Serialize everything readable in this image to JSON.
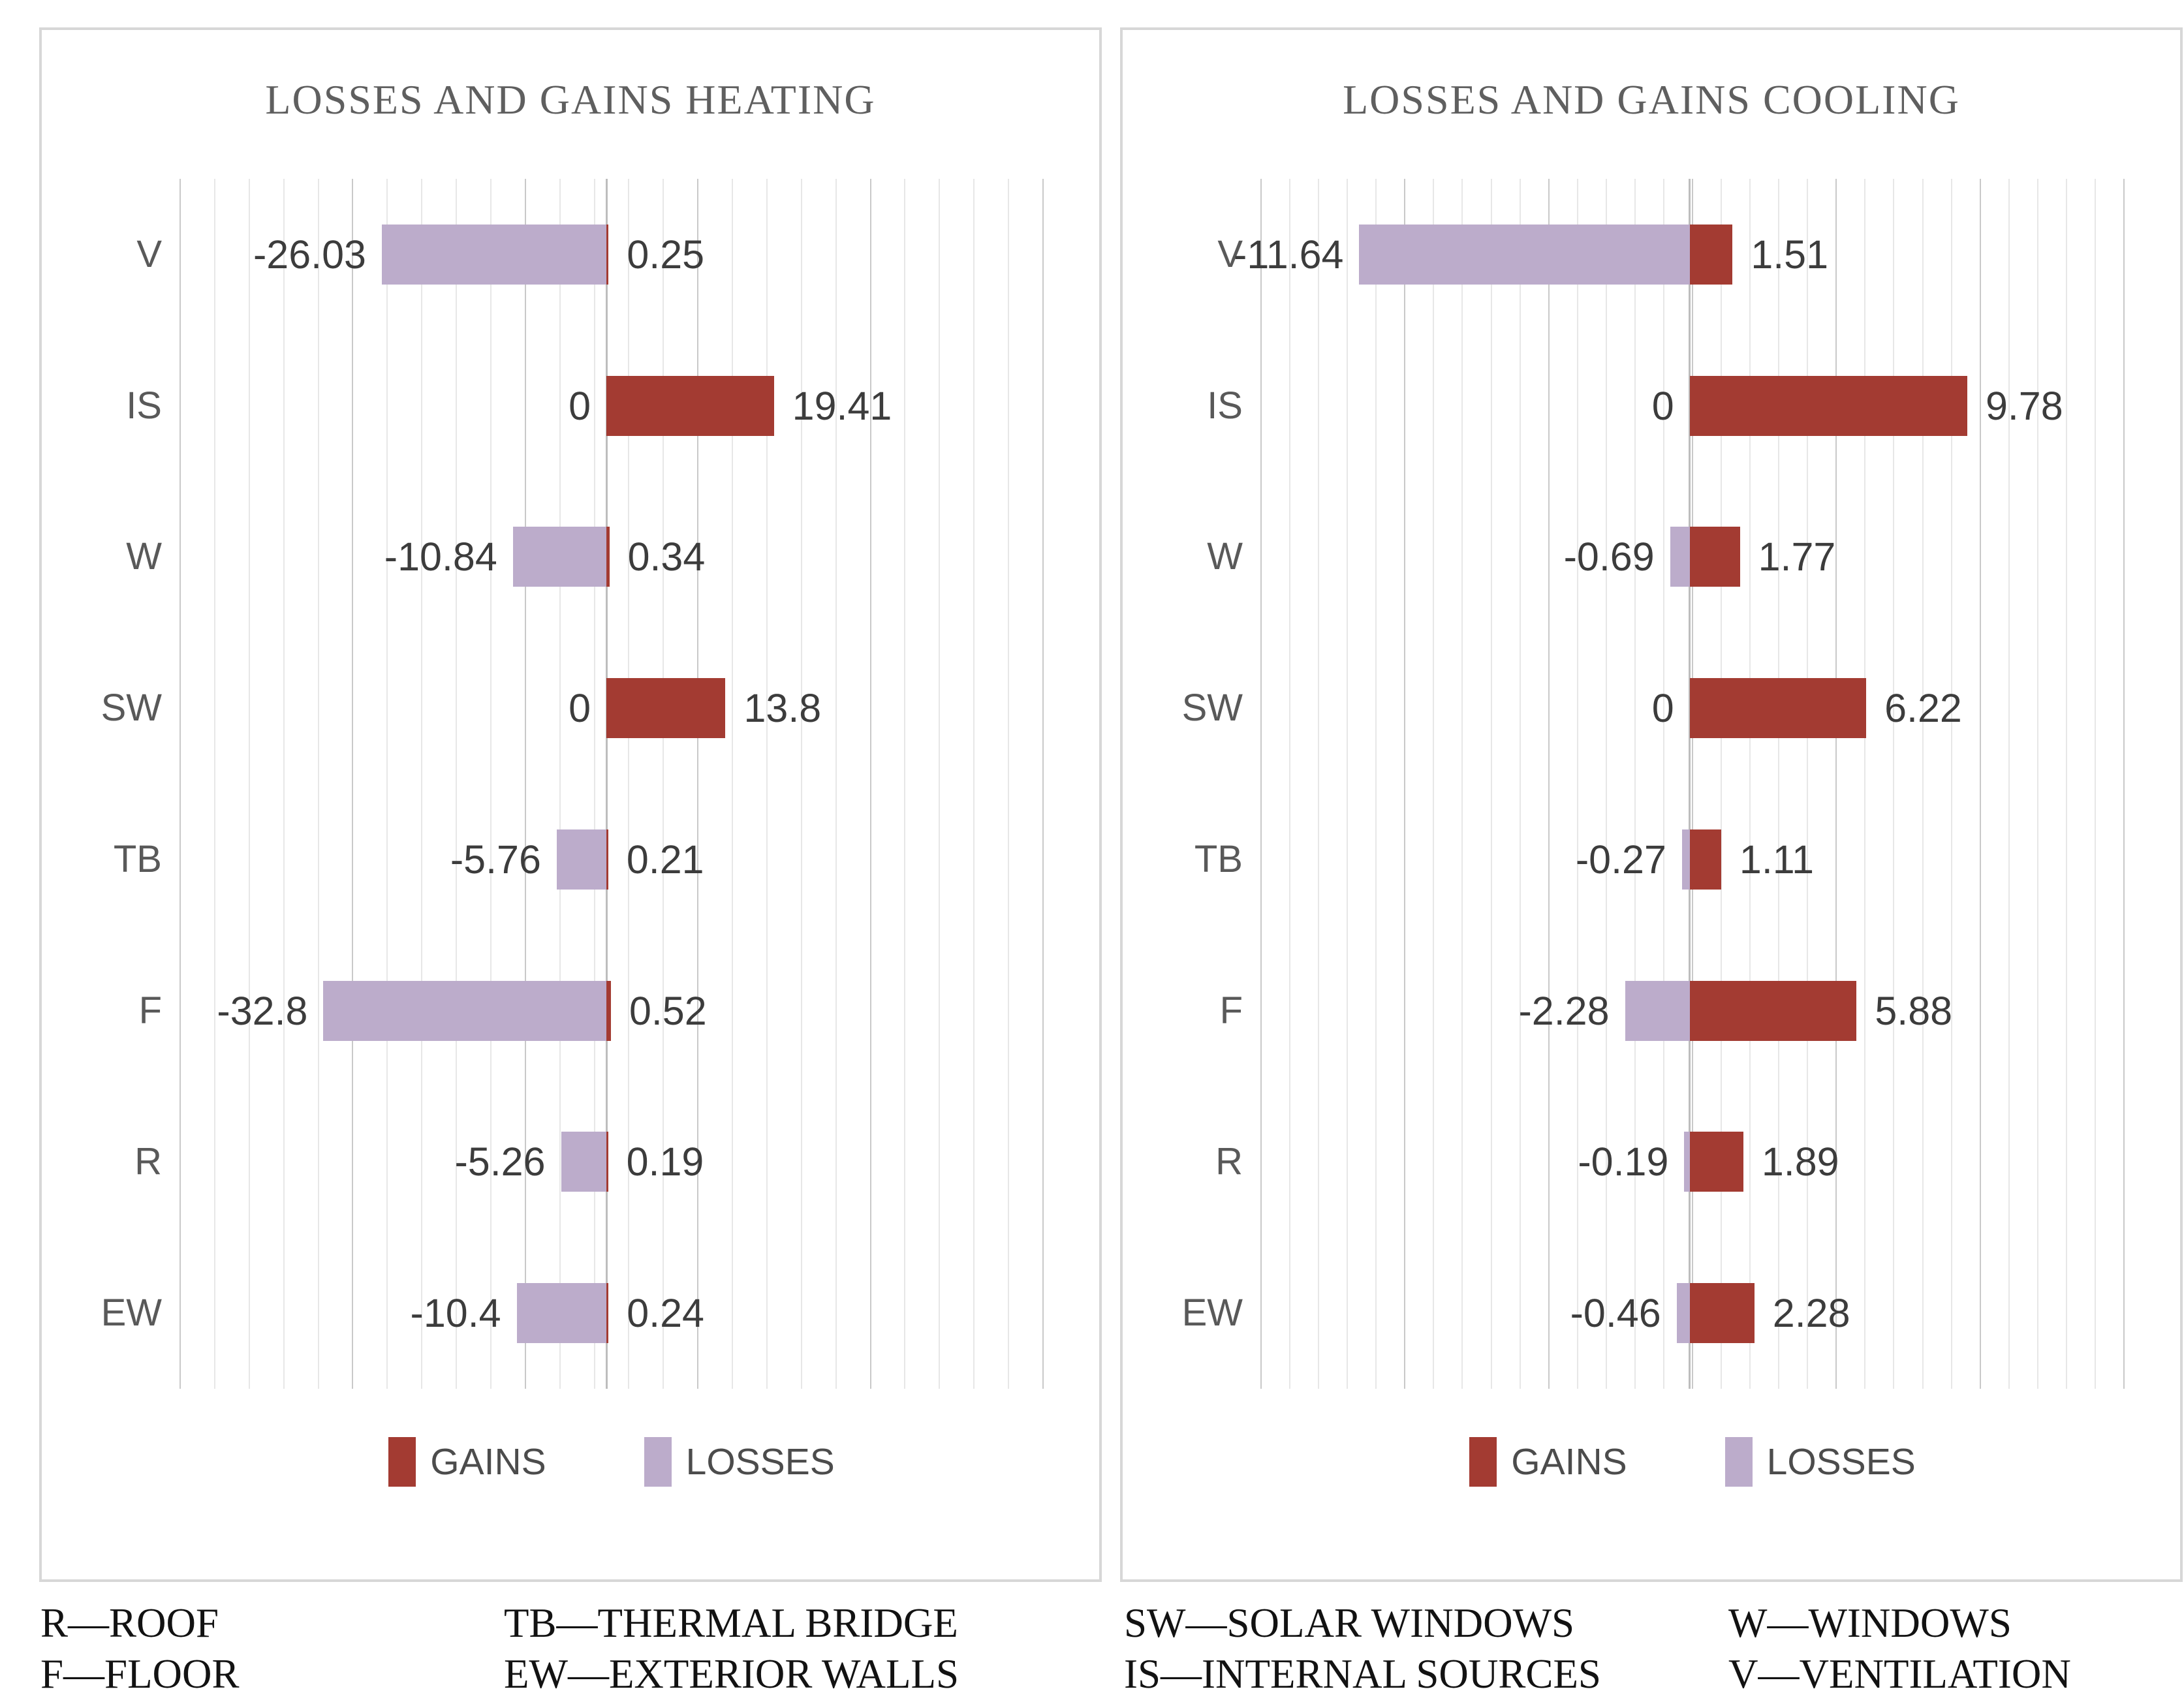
{
  "chart_data": [
    {
      "type": "bar",
      "orientation": "horizontal",
      "title": "LOSSES AND GAINS HEATING",
      "categories": [
        "V",
        "IS",
        "W",
        "SW",
        "TB",
        "F",
        "R",
        "EW"
      ],
      "series": [
        {
          "name": "GAINS",
          "color": "#A33B32",
          "values": [
            0.25,
            19.41,
            0.34,
            13.8,
            0.21,
            0.52,
            0.19,
            0.24
          ],
          "labels": [
            "0.25",
            "19.41",
            "0.34",
            "13.8",
            "0.21",
            "0.52",
            "0.19",
            "0.24"
          ]
        },
        {
          "name": "LOSSES",
          "color": "#BCACCB",
          "values": [
            -26.03,
            0,
            -10.84,
            0,
            -5.76,
            -32.8,
            -5.26,
            -10.4
          ],
          "labels": [
            "-26.03",
            "0",
            "-10.84",
            "0",
            "-5.76",
            "-32.8",
            "-5.26",
            "-10.4"
          ]
        }
      ],
      "legend": {
        "gains": "GAINS",
        "losses": "LOSSES",
        "position": "bottom"
      },
      "axis": {
        "xmin": -49.4,
        "xmax": 50.6,
        "grid": true,
        "grid_intervals": 25,
        "major_every": 5
      }
    },
    {
      "type": "bar",
      "orientation": "horizontal",
      "title": "LOSSES AND GAINS COOLING",
      "categories": [
        "V",
        "IS",
        "W",
        "SW",
        "TB",
        "F",
        "R",
        "EW"
      ],
      "series": [
        {
          "name": "GAINS",
          "color": "#A33B32",
          "values": [
            1.51,
            9.78,
            1.77,
            6.22,
            1.11,
            5.88,
            1.89,
            2.28
          ],
          "labels": [
            "1.51",
            "9.78",
            "1.77",
            "6.22",
            "1.11",
            "5.88",
            "1.89",
            "2.28"
          ]
        },
        {
          "name": "LOSSES",
          "color": "#BCACCB",
          "values": [
            -11.64,
            0,
            -0.69,
            0,
            -0.27,
            -2.28,
            -0.19,
            -0.46
          ],
          "labels": [
            "-11.64",
            "0",
            "-0.69",
            "0",
            "-0.27",
            "-2.28",
            "-0.19",
            "-0.46"
          ]
        }
      ],
      "legend": {
        "gains": "GAINS",
        "losses": "LOSSES",
        "position": "bottom"
      },
      "axis": {
        "xmin": -15.1,
        "xmax": 15.3,
        "grid": true,
        "grid_intervals": 30,
        "major_every": 5
      }
    }
  ],
  "abbreviations": {
    "columns": [
      {
        "items": [
          "R—ROOF",
          "F—FLOOR"
        ]
      },
      {
        "items": [
          "TB—THERMAL BRIDGE",
          "EW—EXTERIOR WALLS"
        ]
      },
      {
        "items": [
          "SW—SOLAR WINDOWS",
          "IS—INTERNAL SOURCES"
        ]
      },
      {
        "items": [
          "W—WINDOWS",
          "V—VENTILATION"
        ]
      }
    ]
  },
  "colors": {
    "gains": "#A33B32",
    "losses": "#BCACCB",
    "grid_minor": "#E7E7E7",
    "grid_major": "#C9C9C9",
    "zero_line": "#BDBDBD",
    "panel_border": "#D7D7D7",
    "title_text": "#5F5F5F",
    "category_text": "#595959",
    "value_text": "#3C3C3C",
    "legend_text": "#4C4C4C",
    "abbrev_text": "#121212"
  }
}
